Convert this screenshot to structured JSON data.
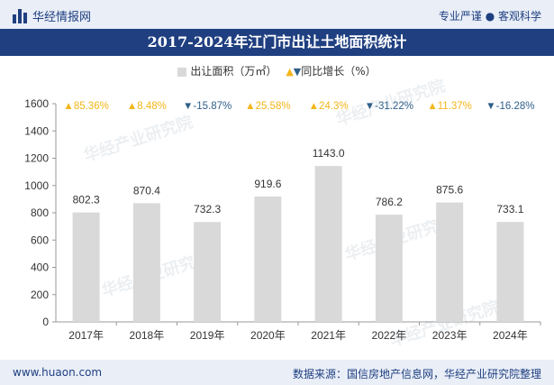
{
  "header": {
    "logo_text": "华经情报网",
    "right_text": "专业严谨 ● 客观科学"
  },
  "title": "2017-2024年江门市出让土地面积统计",
  "legend": {
    "bar_label": "出让面积（万㎡）",
    "growth_label": "同比增长（%）"
  },
  "footer": {
    "left": "www.huaon.com",
    "right": "数据来源：国信房地产信息网，华经产业研究院整理"
  },
  "watermark": "华经产业研究院",
  "colors": {
    "bar": "#d9d9d9",
    "up": "#f3b619",
    "down": "#2f5f8a",
    "title_bg": "#1f3f80"
  },
  "chart_data": {
    "type": "bar",
    "title": "2017-2024年江门市出让土地面积统计",
    "categories": [
      "2017年",
      "2018年",
      "2019年",
      "2020年",
      "2021年",
      "2022年",
      "2023年",
      "2024年"
    ],
    "series": [
      {
        "name": "出让面积（万㎡）",
        "values": [
          802.3,
          870.4,
          732.3,
          919.6,
          1143.0,
          786.2,
          875.6,
          733.1
        ]
      },
      {
        "name": "同比增长（%）",
        "values": [
          85.36,
          8.48,
          -15.87,
          25.58,
          24.3,
          -31.22,
          11.37,
          -16.28
        ]
      }
    ],
    "value_labels": [
      "802.3",
      "870.4",
      "732.3",
      "919.6",
      "1143.0",
      "786.2",
      "875.6",
      "733.1"
    ],
    "growth_labels": [
      "85.36%",
      "8.48%",
      "-15.87%",
      "25.58%",
      "24.3%",
      "-31.22%",
      "11.37%",
      "-16.28%"
    ],
    "ylim": [
      0,
      1600
    ],
    "yticks": [
      0,
      200,
      400,
      600,
      800,
      1000,
      1200,
      1400,
      1600
    ],
    "xlabel": "",
    "ylabel": ""
  }
}
